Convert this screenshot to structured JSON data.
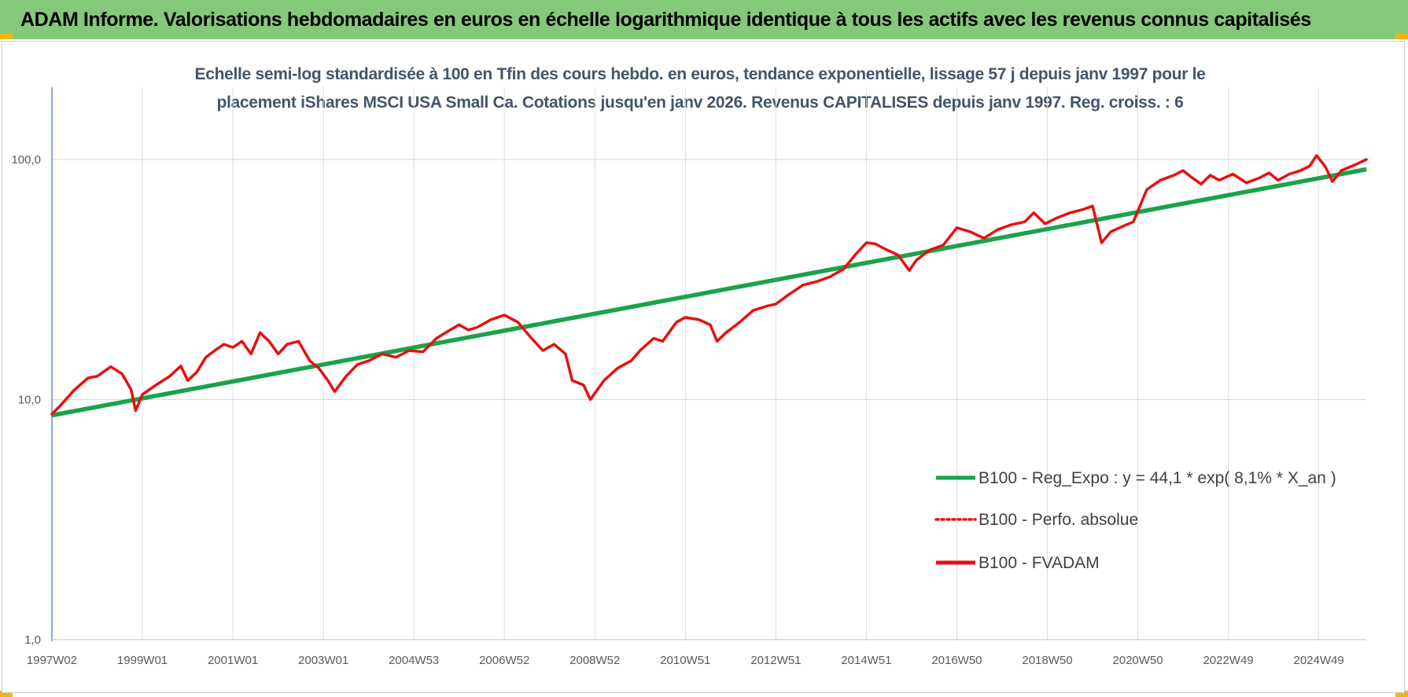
{
  "banner": {
    "title": "ADAM Informe. Valorisations hebdomadaires en euros en échelle logarithmique identique à tous les actifs avec les revenus connus capitalisés"
  },
  "chart_data": {
    "type": "line",
    "title_line1": "Echelle semi-log standardisée à 100 en Tfin des cours hebdo. en euros, tendance exponentielle, lissage 57 j depuis janv 1997 pour le",
    "title_line2": "placement iShares MSCI USA Small Ca. Cotations jusqu'en janv 2026. Revenus CAPITALISES depuis janv 1997. Reg. croiss. : 6",
    "y_scale": "log",
    "ylim": [
      1,
      200
    ],
    "xlim": [
      1997.0,
      2026.05
    ],
    "y_ticks": [
      {
        "value": 1,
        "label": "1,0"
      },
      {
        "value": 10,
        "label": "10,0"
      },
      {
        "value": 100,
        "label": "100,0"
      }
    ],
    "x_ticks": [
      {
        "value": 1997.0,
        "label": "1997W02"
      },
      {
        "value": 1999.0,
        "label": "1999W01"
      },
      {
        "value": 2001.0,
        "label": "2001W01"
      },
      {
        "value": 2003.0,
        "label": "2003W01"
      },
      {
        "value": 2005.0,
        "label": "2004W53"
      },
      {
        "value": 2007.0,
        "label": "2006W52"
      },
      {
        "value": 2009.0,
        "label": "2008W52"
      },
      {
        "value": 2011.0,
        "label": "2010W51"
      },
      {
        "value": 2013.0,
        "label": "2012W51"
      },
      {
        "value": 2015.0,
        "label": "2014W51"
      },
      {
        "value": 2017.0,
        "label": "2016W50"
      },
      {
        "value": 2019.0,
        "label": "2018W50"
      },
      {
        "value": 2021.0,
        "label": "2020W50"
      },
      {
        "value": 2023.0,
        "label": "2022W49"
      },
      {
        "value": 2025.0,
        "label": "2024W49"
      }
    ],
    "grid": true,
    "legend_position": "right",
    "series": [
      {
        "name": "B100 - Reg_Expo : y = 44,1 * exp( 8,1% *  X_an )",
        "color": "#1aa34a",
        "style": "solid",
        "x": [
          1997.0,
          2026.05
        ],
        "y": [
          8.6,
          91
        ]
      },
      {
        "name": "B100 - Perfo. absolue",
        "color": "#e81010",
        "style": "dotted",
        "x": [],
        "y": []
      },
      {
        "name": "B100 - FVADAM",
        "color": "#e81010",
        "style": "solid",
        "x": [
          1997.0,
          1997.2,
          1997.5,
          1997.8,
          1998.0,
          1998.3,
          1998.55,
          1998.75,
          1998.85,
          1999.0,
          1999.3,
          1999.6,
          1999.85,
          2000.0,
          2000.2,
          2000.4,
          2000.6,
          2000.8,
          2001.0,
          2001.2,
          2001.4,
          2001.6,
          2001.8,
          2002.0,
          2002.2,
          2002.45,
          2002.7,
          2002.9,
          2003.1,
          2003.25,
          2003.5,
          2003.75,
          2004.0,
          2004.3,
          2004.6,
          2004.9,
          2005.2,
          2005.5,
          2005.8,
          2006.0,
          2006.2,
          2006.4,
          2006.7,
          2007.0,
          2007.3,
          2007.6,
          2007.85,
          2008.1,
          2008.35,
          2008.5,
          2008.75,
          2008.9,
          2009.2,
          2009.5,
          2009.8,
          2010.0,
          2010.3,
          2010.5,
          2010.8,
          2011.0,
          2011.3,
          2011.55,
          2011.7,
          2011.9,
          2012.2,
          2012.5,
          2012.8,
          2013.0,
          2013.3,
          2013.6,
          2013.9,
          2014.2,
          2014.5,
          2014.75,
          2015.0,
          2015.2,
          2015.4,
          2015.7,
          2015.95,
          2016.1,
          2016.4,
          2016.7,
          2017.0,
          2017.3,
          2017.6,
          2017.9,
          2018.2,
          2018.5,
          2018.7,
          2018.95,
          2019.2,
          2019.5,
          2019.8,
          2020.0,
          2020.2,
          2020.4,
          2020.7,
          2020.9,
          2021.2,
          2021.5,
          2021.8,
          2022.0,
          2022.2,
          2022.4,
          2022.6,
          2022.8,
          2023.1,
          2023.4,
          2023.7,
          2023.9,
          2024.1,
          2024.35,
          2024.6,
          2024.8,
          2024.95,
          2025.15,
          2025.3,
          2025.5,
          2025.8,
          2026.05
        ],
        "y": [
          8.7,
          9.5,
          11.0,
          12.3,
          12.5,
          13.7,
          12.8,
          11.0,
          9.0,
          10.5,
          11.5,
          12.5,
          13.8,
          12.0,
          13.0,
          15.0,
          16.0,
          17.0,
          16.5,
          17.5,
          15.5,
          19.0,
          17.5,
          15.5,
          17.0,
          17.5,
          14.5,
          13.5,
          12.0,
          10.8,
          12.5,
          14.0,
          14.5,
          15.5,
          15.0,
          16.0,
          15.8,
          18.0,
          19.5,
          20.5,
          19.5,
          20.0,
          21.5,
          22.5,
          21.0,
          18.0,
          16.0,
          17.0,
          15.5,
          12.0,
          11.5,
          10.0,
          12.0,
          13.5,
          14.5,
          16.0,
          18.0,
          17.5,
          21.0,
          22.0,
          21.5,
          20.5,
          17.5,
          19.0,
          21.0,
          23.5,
          24.5,
          25.0,
          27.5,
          30.0,
          31.0,
          32.5,
          35.0,
          40.0,
          45.0,
          44.5,
          42.5,
          40.0,
          34.5,
          38.0,
          42.0,
          44.0,
          52.0,
          50.0,
          47.0,
          51.0,
          53.5,
          55.0,
          60.0,
          54.0,
          57.0,
          60.0,
          62.0,
          64.0,
          45.0,
          50.0,
          53.0,
          55.0,
          75.0,
          82.0,
          86.0,
          90.0,
          84.0,
          79.0,
          86.0,
          82.0,
          87.0,
          80.0,
          84.0,
          88.0,
          82.0,
          87.0,
          90.0,
          94.0,
          104.0,
          93.0,
          81.0,
          90.0,
          95.0,
          100.0
        ]
      }
    ]
  }
}
